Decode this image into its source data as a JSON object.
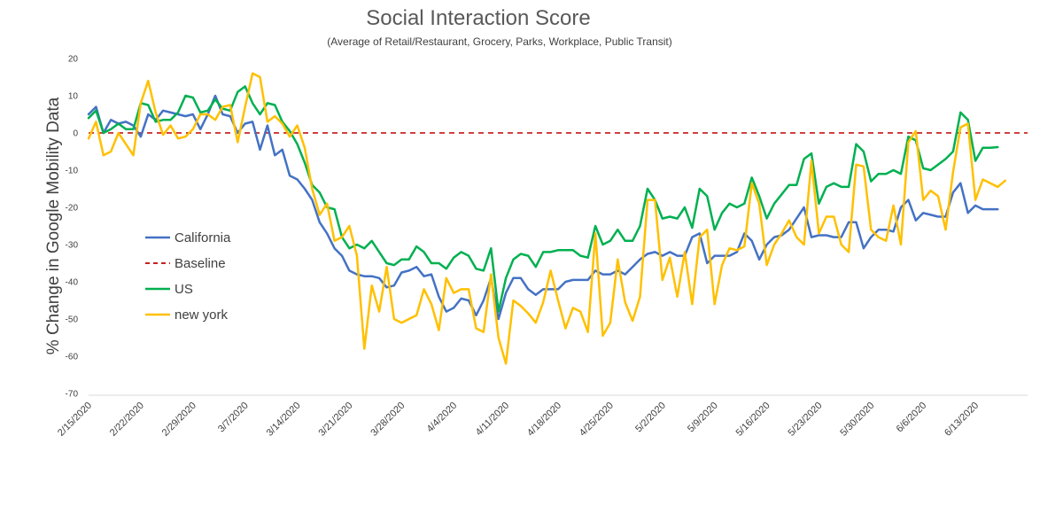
{
  "chart_data": {
    "type": "line",
    "title": "Social Interaction Score",
    "subtitle": "(Average of Retail/Restaurant, Grocery, Parks, Workplace, Public Transit)",
    "xlabel": "",
    "ylabel": "% Change in Google Mobility Data",
    "ylim": [
      -70,
      20
    ],
    "yticks": [
      20,
      10,
      0,
      -10,
      -20,
      -30,
      -40,
      -50,
      -60,
      -70
    ],
    "x_tick_labels": [
      "2/15/2020",
      "2/22/2020",
      "2/29/2020",
      "3/7/2020",
      "3/14/2020",
      "3/21/2020",
      "3/28/2020",
      "4/4/2020",
      "4/11/2020",
      "4/18/2020",
      "4/25/2020",
      "5/2/2020",
      "5/9/2020",
      "5/16/2020",
      "5/23/2020",
      "5/30/2020",
      "6/6/2020",
      "6/13/2020"
    ],
    "x_tick_days": [
      0,
      7,
      14,
      21,
      28,
      35,
      42,
      49,
      56,
      63,
      70,
      77,
      84,
      91,
      98,
      105,
      112,
      119
    ],
    "x_range_days": [
      0,
      126
    ],
    "grid": false,
    "legend_position": "left-center",
    "series": [
      {
        "name": "California",
        "color": "#4472C4",
        "style": "solid",
        "values": [
          5,
          7,
          0,
          3.5,
          2.5,
          3,
          2,
          -1,
          5,
          3.5,
          6,
          5.5,
          5,
          4.5,
          5,
          1,
          5,
          10,
          5,
          4.5,
          0,
          2.5,
          3,
          -4.5,
          2,
          -6,
          -4.5,
          -11.5,
          -12.5,
          -15,
          -18,
          -24,
          -27,
          -31,
          -33,
          -37,
          -38,
          -38.5,
          -38.5,
          -39,
          -41.5,
          -41,
          -37.5,
          -37,
          -36,
          -38.5,
          -38,
          -44,
          -48,
          -47,
          -44.5,
          -45,
          -49,
          -45,
          -39,
          -50,
          -43,
          -39,
          -39,
          -42,
          -43.5,
          -42,
          -42,
          -42,
          -40,
          -39.5,
          -39.5,
          -39.5,
          -37,
          -38,
          -38,
          -37,
          -38,
          -36,
          -34,
          -32.5,
          -32,
          -33,
          -32,
          -33,
          -33,
          -28,
          -27,
          -35,
          -33,
          -33,
          -33,
          -32,
          -27,
          -29,
          -34,
          -30,
          -28,
          -27.5,
          -26,
          -23,
          -20,
          -28,
          -27.5,
          -27.5,
          -28,
          -28,
          -24,
          -24,
          -31,
          -28,
          -26,
          -26,
          -26.5,
          -20,
          -18,
          -23.5,
          -21.5,
          -22,
          -22.5,
          -22.5,
          -16,
          -13.5,
          -21.5,
          -19.5,
          -20.5,
          -20.5,
          -20.5
        ]
      },
      {
        "name": "Baseline",
        "color": "#C00000",
        "style": "dashed",
        "values": [
          0,
          0
        ]
      },
      {
        "name": "US",
        "color": "#00B050",
        "style": "solid",
        "values": [
          4,
          6,
          0,
          1,
          2.5,
          1,
          1,
          8,
          7.5,
          3,
          3.5,
          3.5,
          5.5,
          10,
          9.5,
          5.5,
          6,
          9,
          6.5,
          6,
          11,
          12.5,
          8,
          5,
          8,
          7.5,
          3,
          0.5,
          -3,
          -8,
          -14,
          -16,
          -20,
          -20.5,
          -28,
          -31,
          -30,
          -31,
          -29,
          -32,
          -35,
          -35.5,
          -34,
          -34,
          -30.5,
          -32,
          -35,
          -35,
          -36.5,
          -33.5,
          -32,
          -33,
          -36.5,
          -37,
          -31,
          -48,
          -39,
          -34,
          -32.5,
          -33,
          -36,
          -32,
          -32,
          -31.5,
          -31.5,
          -31.5,
          -33,
          -33.5,
          -25,
          -30,
          -29,
          -26,
          -29,
          -29,
          -25,
          -15,
          -18,
          -23,
          -22.5,
          -23,
          -20,
          -25.5,
          -15,
          -17,
          -26,
          -21.5,
          -19,
          -20,
          -19,
          -12,
          -17,
          -23,
          -19,
          -16.5,
          -14,
          -14,
          -7,
          -5.5,
          -19,
          -14.5,
          -13.5,
          -14.5,
          -14.5,
          -3,
          -5,
          -13,
          -11,
          -11,
          -10,
          -11,
          -1,
          -2,
          -9.5,
          -10,
          -8.5,
          -7,
          -5,
          5.5,
          3.5,
          -7.5,
          -4,
          -4,
          -3.8
        ]
      },
      {
        "name": "new york",
        "color": "#FFC000",
        "style": "solid",
        "values": [
          -1.5,
          3,
          -6,
          -5,
          0,
          -3,
          -6,
          8,
          14,
          5.5,
          -0.5,
          2,
          -1.5,
          -1,
          1,
          5,
          5,
          3.5,
          7,
          7.5,
          -2.5,
          7,
          16,
          15,
          3,
          4.5,
          2.5,
          -1,
          2,
          -4,
          -15,
          -22,
          -19,
          -29,
          -28,
          -25,
          -33,
          -58,
          -41,
          -48,
          -36,
          -50,
          -51,
          -50,
          -49,
          -42,
          -46,
          -53,
          -39,
          -43,
          -42,
          -42,
          -52.5,
          -53.5,
          -38,
          -55,
          -62,
          -45,
          -46.5,
          -48.5,
          -51,
          -45.5,
          -37,
          -45,
          -52.5,
          -47,
          -48,
          -53.5,
          -27,
          -54.5,
          -51,
          -34,
          -45.5,
          -50.5,
          -44,
          -18,
          -18,
          -39.5,
          -33.5,
          -44,
          -32,
          -46,
          -28,
          -26,
          -46,
          -35.5,
          -31,
          -31.5,
          -30.5,
          -13.5,
          -19,
          -35.5,
          -30,
          -27,
          -23.5,
          -28,
          -30,
          -7.5,
          -27,
          -22.5,
          -22.5,
          -30,
          -32,
          -8.5,
          -9,
          -26,
          -28,
          -29,
          -19.5,
          -30,
          -2.5,
          0.5,
          -18,
          -15.5,
          -17,
          -26,
          -10.5,
          1.5,
          2.5,
          -18,
          -12.5,
          -13.5,
          -14.5,
          -12.8
        ]
      }
    ]
  }
}
